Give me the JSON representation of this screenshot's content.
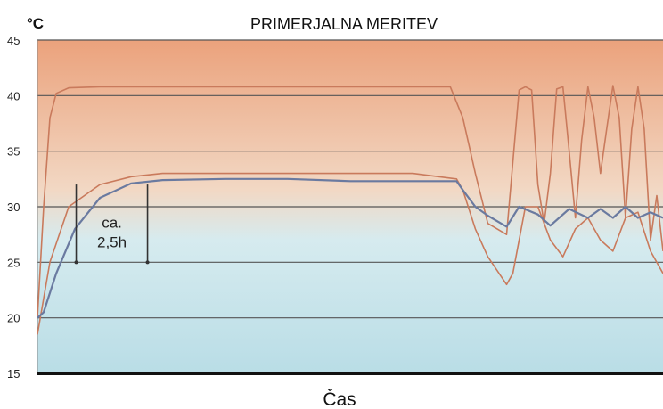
{
  "chart_data": {
    "type": "line",
    "title": "PRIMERJALNA MERITEV",
    "xlabel": "Čas",
    "ylabel": "°C",
    "ylim": [
      15,
      45
    ],
    "y_ticks": [
      "15",
      "20",
      "25",
      "30",
      "35",
      "40",
      "45"
    ],
    "grid": true,
    "background": "gradient orange (top) to light blue (bottom)",
    "series": [
      {
        "color": "#c97a5c",
        "x": [
          0,
          1,
          2,
          3,
          5,
          10,
          20,
          30,
          40,
          50,
          60,
          66,
          68,
          70,
          72,
          75,
          76,
          77,
          78,
          79,
          80,
          81,
          82,
          83,
          84,
          85,
          86,
          87,
          88,
          89,
          90,
          91,
          92,
          93,
          94,
          95,
          96,
          97,
          98,
          99,
          100
        ],
        "y": [
          20,
          30,
          38,
          40.2,
          40.7,
          40.8,
          40.8,
          40.8,
          40.8,
          40.8,
          40.8,
          40.8,
          38,
          33,
          28.5,
          27.5,
          34,
          40.5,
          40.8,
          40.5,
          32,
          28.5,
          33,
          40.6,
          40.8,
          35,
          29,
          36,
          40.8,
          38,
          33,
          37,
          40.9,
          38,
          29,
          37,
          40.8,
          37,
          27,
          31,
          26
        ]
      },
      {
        "color": "#c97a5c",
        "x": [
          0,
          2,
          5,
          10,
          15,
          20,
          30,
          40,
          50,
          60,
          67,
          68,
          70,
          72,
          75,
          76,
          78,
          80,
          82,
          84,
          86,
          88,
          90,
          92,
          94,
          96,
          98,
          100
        ],
        "y": [
          18.5,
          25,
          30,
          32,
          32.7,
          33,
          33,
          33,
          33,
          33,
          32.5,
          31.5,
          28,
          25.5,
          23,
          24,
          30,
          30,
          27,
          25.5,
          28,
          29,
          27,
          26,
          29,
          29.5,
          26,
          24
        ]
      },
      {
        "color": "#6a7aa0",
        "x": [
          0,
          1,
          3,
          6,
          10,
          15,
          20,
          30,
          40,
          50,
          60,
          67,
          68,
          70,
          72,
          75,
          77,
          80,
          82,
          85,
          88,
          90,
          92,
          94,
          96,
          98,
          100
        ],
        "y": [
          20,
          20.5,
          24,
          28,
          30.8,
          32.1,
          32.4,
          32.5,
          32.5,
          32.3,
          32.3,
          32.3,
          31.5,
          30,
          29.2,
          28.2,
          30,
          29.3,
          28.3,
          29.8,
          29,
          29.8,
          29,
          30,
          29,
          29.5,
          29
        ]
      }
    ],
    "annotation": {
      "lines": [
        "ca.",
        "2,5h"
      ],
      "markers": [
        {
          "x": 6.2,
          "y_from": 25,
          "y_to": 32
        },
        {
          "x": 17.6,
          "y_from": 25,
          "y_to": 32
        }
      ]
    }
  }
}
